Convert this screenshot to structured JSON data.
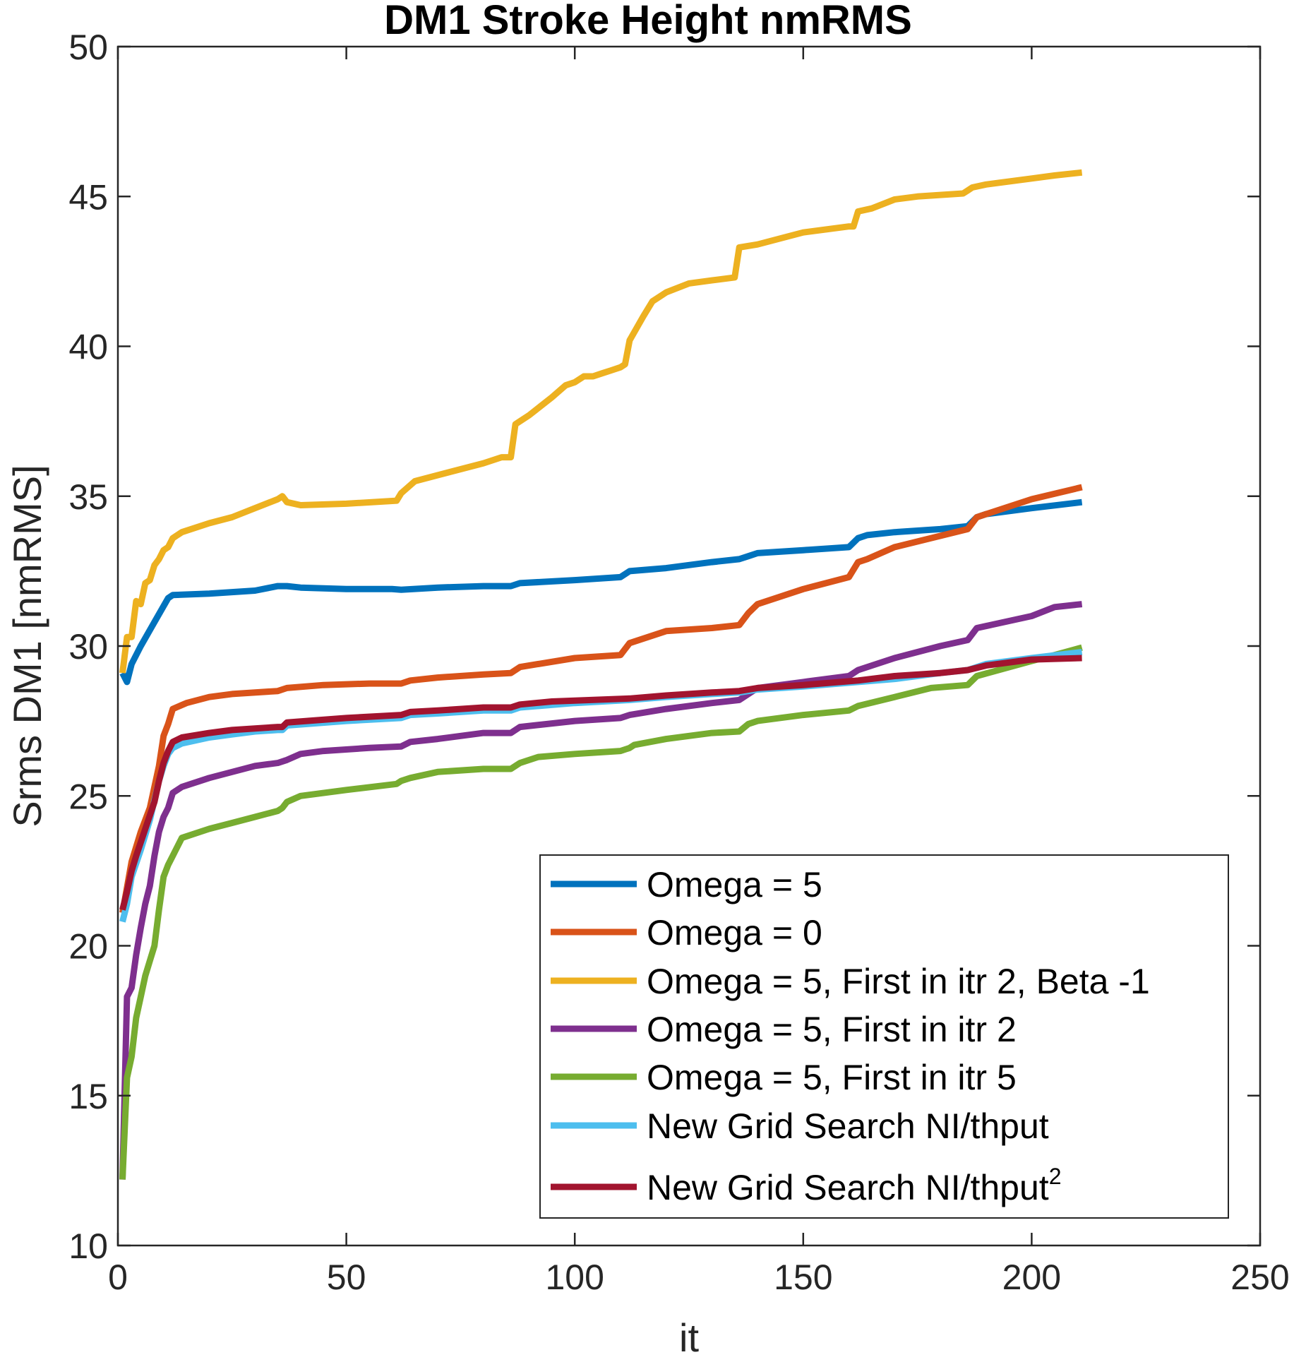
{
  "chart_data": {
    "type": "line",
    "title": "DM1 Stroke Height nmRMS",
    "xlabel": "it",
    "ylabel": "Srms DM1 [nmRMS]",
    "xlim": [
      0,
      250
    ],
    "ylim": [
      10,
      50
    ],
    "xticks": [
      0,
      50,
      100,
      150,
      200,
      250
    ],
    "yticks": [
      10,
      15,
      20,
      25,
      30,
      35,
      40,
      45,
      50
    ],
    "grid": false,
    "legend_position": "bottom-right",
    "series": [
      {
        "name": "Omega = 5",
        "color": "#0072BD",
        "points": [
          [
            1,
            29.1
          ],
          [
            2,
            28.8
          ],
          [
            3,
            29.4
          ],
          [
            5,
            30.0
          ],
          [
            8,
            30.8
          ],
          [
            11,
            31.6
          ],
          [
            12,
            31.7
          ],
          [
            20,
            31.75
          ],
          [
            30,
            31.85
          ],
          [
            35,
            32.0
          ],
          [
            37,
            32.0
          ],
          [
            40,
            31.95
          ],
          [
            50,
            31.9
          ],
          [
            60,
            31.9
          ],
          [
            62,
            31.88
          ],
          [
            70,
            31.95
          ],
          [
            80,
            32.0
          ],
          [
            86,
            32.0
          ],
          [
            88,
            32.1
          ],
          [
            100,
            32.2
          ],
          [
            110,
            32.3
          ],
          [
            112,
            32.5
          ],
          [
            120,
            32.6
          ],
          [
            130,
            32.8
          ],
          [
            136,
            32.9
          ],
          [
            138,
            33.0
          ],
          [
            140,
            33.1
          ],
          [
            150,
            33.2
          ],
          [
            160,
            33.3
          ],
          [
            162,
            33.6
          ],
          [
            164,
            33.7
          ],
          [
            170,
            33.8
          ],
          [
            180,
            33.9
          ],
          [
            186,
            34.0
          ],
          [
            188,
            34.3
          ],
          [
            190,
            34.4
          ],
          [
            200,
            34.6
          ],
          [
            211,
            34.8
          ]
        ]
      },
      {
        "name": "Omega = 0",
        "color": "#D95319",
        "points": [
          [
            1,
            21.1
          ],
          [
            3,
            22.8
          ],
          [
            5,
            23.8
          ],
          [
            7,
            24.6
          ],
          [
            9,
            26.0
          ],
          [
            10,
            27.0
          ],
          [
            11,
            27.4
          ],
          [
            12,
            27.9
          ],
          [
            15,
            28.1
          ],
          [
            20,
            28.3
          ],
          [
            25,
            28.4
          ],
          [
            35,
            28.5
          ],
          [
            37,
            28.6
          ],
          [
            45,
            28.7
          ],
          [
            55,
            28.75
          ],
          [
            62,
            28.75
          ],
          [
            64,
            28.85
          ],
          [
            70,
            28.95
          ],
          [
            80,
            29.05
          ],
          [
            86,
            29.1
          ],
          [
            88,
            29.3
          ],
          [
            100,
            29.6
          ],
          [
            110,
            29.7
          ],
          [
            112,
            30.1
          ],
          [
            120,
            30.5
          ],
          [
            130,
            30.6
          ],
          [
            136,
            30.7
          ],
          [
            138,
            31.1
          ],
          [
            140,
            31.4
          ],
          [
            150,
            31.9
          ],
          [
            160,
            32.3
          ],
          [
            162,
            32.8
          ],
          [
            164,
            32.9
          ],
          [
            170,
            33.3
          ],
          [
            186,
            33.9
          ],
          [
            188,
            34.3
          ],
          [
            190,
            34.4
          ],
          [
            200,
            34.9
          ],
          [
            211,
            35.3
          ]
        ]
      },
      {
        "name": "Omega = 5, First in itr 2, Beta -1",
        "color": "#EDB120",
        "points": [
          [
            1,
            29.1
          ],
          [
            2,
            30.3
          ],
          [
            3,
            30.3
          ],
          [
            4,
            31.5
          ],
          [
            5,
            31.4
          ],
          [
            6,
            32.1
          ],
          [
            7,
            32.2
          ],
          [
            8,
            32.7
          ],
          [
            9,
            32.9
          ],
          [
            10,
            33.2
          ],
          [
            11,
            33.3
          ],
          [
            12,
            33.6
          ],
          [
            14,
            33.8
          ],
          [
            20,
            34.1
          ],
          [
            25,
            34.3
          ],
          [
            30,
            34.6
          ],
          [
            35,
            34.9
          ],
          [
            36,
            35.0
          ],
          [
            37,
            34.8
          ],
          [
            40,
            34.7
          ],
          [
            50,
            34.75
          ],
          [
            61,
            34.85
          ],
          [
            62,
            35.1
          ],
          [
            65,
            35.5
          ],
          [
            70,
            35.7
          ],
          [
            80,
            36.1
          ],
          [
            84,
            36.3
          ],
          [
            86,
            36.3
          ],
          [
            87,
            37.4
          ],
          [
            88,
            37.5
          ],
          [
            90,
            37.7
          ],
          [
            95,
            38.3
          ],
          [
            98,
            38.7
          ],
          [
            100,
            38.8
          ],
          [
            102,
            39.0
          ],
          [
            104,
            39.0
          ],
          [
            106,
            39.1
          ],
          [
            108,
            39.2
          ],
          [
            110,
            39.3
          ],
          [
            111,
            39.4
          ],
          [
            112,
            40.2
          ],
          [
            115,
            41.0
          ],
          [
            117,
            41.5
          ],
          [
            120,
            41.8
          ],
          [
            125,
            42.1
          ],
          [
            130,
            42.2
          ],
          [
            135,
            42.3
          ],
          [
            136,
            43.3
          ],
          [
            140,
            43.4
          ],
          [
            145,
            43.6
          ],
          [
            150,
            43.8
          ],
          [
            155,
            43.9
          ],
          [
            160,
            44.0
          ],
          [
            161,
            44.0
          ],
          [
            162,
            44.5
          ],
          [
            165,
            44.6
          ],
          [
            170,
            44.9
          ],
          [
            175,
            45.0
          ],
          [
            185,
            45.1
          ],
          [
            186,
            45.2
          ],
          [
            187,
            45.3
          ],
          [
            190,
            45.4
          ],
          [
            200,
            45.6
          ],
          [
            205,
            45.7
          ],
          [
            211,
            45.8
          ]
        ]
      },
      {
        "name": "Omega = 5, First in itr 2",
        "color": "#7E2F8E",
        "points": [
          [
            1,
            12.2
          ],
          [
            2,
            18.3
          ],
          [
            3,
            18.6
          ],
          [
            4,
            19.7
          ],
          [
            5,
            20.6
          ],
          [
            6,
            21.4
          ],
          [
            7,
            22.0
          ],
          [
            8,
            23.0
          ],
          [
            9,
            23.8
          ],
          [
            10,
            24.3
          ],
          [
            11,
            24.6
          ],
          [
            12,
            25.1
          ],
          [
            14,
            25.3
          ],
          [
            20,
            25.6
          ],
          [
            25,
            25.8
          ],
          [
            30,
            26.0
          ],
          [
            35,
            26.1
          ],
          [
            37,
            26.2
          ],
          [
            40,
            26.4
          ],
          [
            45,
            26.5
          ],
          [
            55,
            26.6
          ],
          [
            62,
            26.65
          ],
          [
            64,
            26.8
          ],
          [
            70,
            26.9
          ],
          [
            80,
            27.1
          ],
          [
            86,
            27.1
          ],
          [
            88,
            27.3
          ],
          [
            100,
            27.5
          ],
          [
            110,
            27.6
          ],
          [
            112,
            27.7
          ],
          [
            120,
            27.9
          ],
          [
            130,
            28.1
          ],
          [
            136,
            28.2
          ],
          [
            140,
            28.6
          ],
          [
            150,
            28.8
          ],
          [
            160,
            29.0
          ],
          [
            162,
            29.2
          ],
          [
            170,
            29.6
          ],
          [
            180,
            30.0
          ],
          [
            186,
            30.2
          ],
          [
            188,
            30.6
          ],
          [
            200,
            31.0
          ],
          [
            205,
            31.3
          ],
          [
            211,
            31.4
          ]
        ]
      },
      {
        "name": "Omega = 5, First in itr 5",
        "color": "#77AC30",
        "points": [
          [
            1,
            12.2
          ],
          [
            2,
            15.6
          ],
          [
            3,
            16.3
          ],
          [
            4,
            17.6
          ],
          [
            5,
            18.3
          ],
          [
            6,
            19.0
          ],
          [
            7,
            19.5
          ],
          [
            8,
            20.0
          ],
          [
            9,
            21.2
          ],
          [
            10,
            22.3
          ],
          [
            11,
            22.7
          ],
          [
            12,
            23.0
          ],
          [
            14,
            23.6
          ],
          [
            20,
            23.9
          ],
          [
            25,
            24.1
          ],
          [
            30,
            24.3
          ],
          [
            35,
            24.5
          ],
          [
            36,
            24.6
          ],
          [
            37,
            24.8
          ],
          [
            40,
            25.0
          ],
          [
            50,
            25.2
          ],
          [
            61,
            25.4
          ],
          [
            62,
            25.5
          ],
          [
            64,
            25.6
          ],
          [
            70,
            25.8
          ],
          [
            80,
            25.9
          ],
          [
            86,
            25.9
          ],
          [
            88,
            26.1
          ],
          [
            92,
            26.3
          ],
          [
            100,
            26.4
          ],
          [
            110,
            26.5
          ],
          [
            112,
            26.6
          ],
          [
            113,
            26.7
          ],
          [
            120,
            26.9
          ],
          [
            130,
            27.1
          ],
          [
            136,
            27.15
          ],
          [
            138,
            27.4
          ],
          [
            140,
            27.5
          ],
          [
            150,
            27.7
          ],
          [
            160,
            27.85
          ],
          [
            162,
            28.0
          ],
          [
            170,
            28.3
          ],
          [
            178,
            28.6
          ],
          [
            186,
            28.7
          ],
          [
            188,
            29.0
          ],
          [
            200,
            29.5
          ],
          [
            205,
            29.7
          ],
          [
            211,
            29.95
          ]
        ]
      },
      {
        "name": "New Grid Search NI/thput",
        "color": "#4DBEEE",
        "points": [
          [
            1,
            20.8
          ],
          [
            2,
            21.4
          ],
          [
            3,
            22.3
          ],
          [
            5,
            23.2
          ],
          [
            7,
            24.2
          ],
          [
            9,
            25.5
          ],
          [
            10,
            26.0
          ],
          [
            11,
            26.4
          ],
          [
            12,
            26.6
          ],
          [
            14,
            26.75
          ],
          [
            20,
            26.95
          ],
          [
            25,
            27.05
          ],
          [
            30,
            27.15
          ],
          [
            35,
            27.2
          ],
          [
            36,
            27.2
          ],
          [
            37,
            27.35
          ],
          [
            50,
            27.5
          ],
          [
            62,
            27.6
          ],
          [
            64,
            27.7
          ],
          [
            70,
            27.75
          ],
          [
            80,
            27.85
          ],
          [
            86,
            27.85
          ],
          [
            88,
            27.95
          ],
          [
            100,
            28.1
          ],
          [
            112,
            28.2
          ],
          [
            120,
            28.3
          ],
          [
            130,
            28.4
          ],
          [
            136,
            28.45
          ],
          [
            140,
            28.55
          ],
          [
            150,
            28.65
          ],
          [
            162,
            28.8
          ],
          [
            170,
            28.9
          ],
          [
            180,
            29.1
          ],
          [
            186,
            29.2
          ],
          [
            190,
            29.4
          ],
          [
            200,
            29.6
          ],
          [
            211,
            29.8
          ]
        ]
      },
      {
        "name": "New Grid Search NI/thput",
        "name_sup": "2",
        "color": "#A2142F",
        "points": [
          [
            1,
            21.2
          ],
          [
            2,
            21.8
          ],
          [
            3,
            22.5
          ],
          [
            4,
            23.0
          ],
          [
            6,
            23.9
          ],
          [
            8,
            24.8
          ],
          [
            9,
            25.5
          ],
          [
            10,
            26.1
          ],
          [
            11,
            26.5
          ],
          [
            12,
            26.8
          ],
          [
            14,
            26.95
          ],
          [
            20,
            27.1
          ],
          [
            25,
            27.2
          ],
          [
            30,
            27.25
          ],
          [
            35,
            27.3
          ],
          [
            36,
            27.3
          ],
          [
            37,
            27.45
          ],
          [
            50,
            27.6
          ],
          [
            62,
            27.7
          ],
          [
            64,
            27.8
          ],
          [
            70,
            27.85
          ],
          [
            80,
            27.95
          ],
          [
            86,
            27.95
          ],
          [
            88,
            28.05
          ],
          [
            95,
            28.15
          ],
          [
            112,
            28.25
          ],
          [
            120,
            28.35
          ],
          [
            130,
            28.45
          ],
          [
            136,
            28.5
          ],
          [
            140,
            28.6
          ],
          [
            150,
            28.7
          ],
          [
            162,
            28.85
          ],
          [
            170,
            29.0
          ],
          [
            180,
            29.1
          ],
          [
            186,
            29.2
          ],
          [
            190,
            29.35
          ],
          [
            200,
            29.55
          ],
          [
            211,
            29.6
          ]
        ]
      }
    ]
  }
}
